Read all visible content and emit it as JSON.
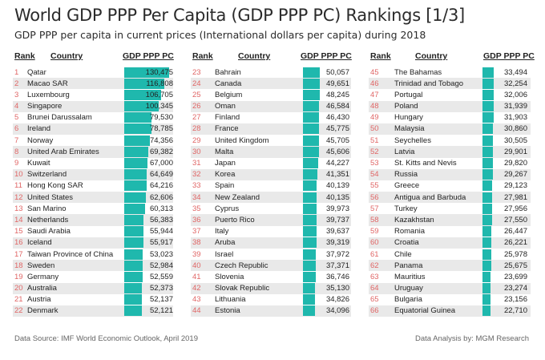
{
  "title": "World GDP PPP Per Capita (GDP PPP PC) Rankings [1/3]",
  "subtitle": "GDP PPP per capita in current prices (International dollars per capita) during 2018",
  "headers": {
    "rank": "Rank",
    "country": "Country",
    "value": "GDP PPP PC"
  },
  "colors": {
    "bar": "#1fb8ad",
    "rank": "#e06666",
    "alt_row": "#e9e9e9"
  },
  "footer": {
    "source": "Data Source: IMF World Economic Outlook, April 2019",
    "analysis": "Data Analysis by: MGM Research"
  },
  "chart_data": {
    "type": "bar",
    "orientation": "horizontal",
    "xlim": [
      0,
      130475
    ],
    "columns": [
      {
        "ranks": [
          1,
          2,
          3,
          4,
          5,
          6,
          7,
          8,
          9,
          10,
          11,
          12,
          13,
          14,
          15,
          16,
          17,
          18,
          19,
          20,
          21,
          22
        ],
        "categories": [
          "Qatar",
          "Macao SAR",
          "Luxembourg",
          "Singapore",
          "Brunei Darussalam",
          "Ireland",
          "Norway",
          "United Arab Emirates",
          "Kuwait",
          "Switzerland",
          "Hong Kong SAR",
          "United States",
          "San Marino",
          "Netherlands",
          "Saudi Arabia",
          "Iceland",
          "Taiwan Province of China",
          "Sweden",
          "Germany",
          "Australia",
          "Austria",
          "Denmark"
        ],
        "values": [
          130475,
          116808,
          106705,
          100345,
          79530,
          78785,
          74356,
          69382,
          67000,
          64649,
          64216,
          62606,
          60313,
          56383,
          55944,
          55917,
          53023,
          52984,
          52559,
          52373,
          52137,
          52121
        ],
        "labels": [
          "130,475",
          "116,808",
          "106,705",
          "100,345",
          "79,530",
          "78,785",
          "74,356",
          "69,382",
          "67,000",
          "64,649",
          "64,216",
          "62,606",
          "60,313",
          "56,383",
          "55,944",
          "55,917",
          "53,023",
          "52,984",
          "52,559",
          "52,373",
          "52,137",
          "52,121"
        ]
      },
      {
        "ranks": [
          23,
          24,
          25,
          26,
          27,
          28,
          29,
          30,
          31,
          32,
          33,
          34,
          35,
          36,
          37,
          38,
          39,
          40,
          41,
          42,
          43,
          44
        ],
        "categories": [
          "Bahrain",
          "Canada",
          "Belgium",
          "Oman",
          "Finland",
          "France",
          "United Kingdom",
          "Malta",
          "Japan",
          "Korea",
          "Spain",
          "New Zealand",
          "Cyprus",
          "Puerto Rico",
          "Italy",
          "Aruba",
          "Israel",
          "Czech Republic",
          "Slovenia",
          "Slovak Republic",
          "Lithuania",
          "Estonia"
        ],
        "values": [
          50057,
          49651,
          48245,
          46584,
          46430,
          45775,
          45705,
          45606,
          44227,
          41351,
          40139,
          40135,
          39973,
          39737,
          39637,
          39319,
          37972,
          37371,
          36746,
          35130,
          34826,
          34096
        ],
        "labels": [
          "50,057",
          "49,651",
          "48,245",
          "46,584",
          "46,430",
          "45,775",
          "45,705",
          "45,606",
          "44,227",
          "41,351",
          "40,139",
          "40,135",
          "39,973",
          "39,737",
          "39,637",
          "39,319",
          "37,972",
          "37,371",
          "36,746",
          "35,130",
          "34,826",
          "34,096"
        ]
      },
      {
        "ranks": [
          45,
          46,
          47,
          48,
          49,
          50,
          51,
          52,
          53,
          54,
          55,
          56,
          57,
          58,
          59,
          60,
          61,
          62,
          63,
          64,
          65,
          66
        ],
        "categories": [
          "The Bahamas",
          "Trinidad and Tobago",
          "Portugal",
          "Poland",
          "Hungary",
          "Malaysia",
          "Seychelles",
          "Latvia",
          "St. Kitts and Nevis",
          "Russia",
          "Greece",
          "Antigua and Barbuda",
          "Turkey",
          "Kazakhstan",
          "Romania",
          "Croatia",
          "Chile",
          "Panama",
          "Mauritius",
          "Uruguay",
          "Bulgaria",
          "Equatorial Guinea"
        ],
        "values": [
          33494,
          32254,
          32006,
          31939,
          31903,
          30860,
          30505,
          29901,
          29820,
          29267,
          29123,
          27981,
          27956,
          27550,
          26447,
          26221,
          25978,
          25675,
          23699,
          23274,
          23156,
          22710
        ],
        "labels": [
          "33,494",
          "32,254",
          "32,006",
          "31,939",
          "31,903",
          "30,860",
          "30,505",
          "29,901",
          "29,820",
          "29,267",
          "29,123",
          "27,981",
          "27,956",
          "27,550",
          "26,447",
          "26,221",
          "25,978",
          "25,675",
          "23,699",
          "23,274",
          "23,156",
          "22,710"
        ]
      }
    ]
  }
}
